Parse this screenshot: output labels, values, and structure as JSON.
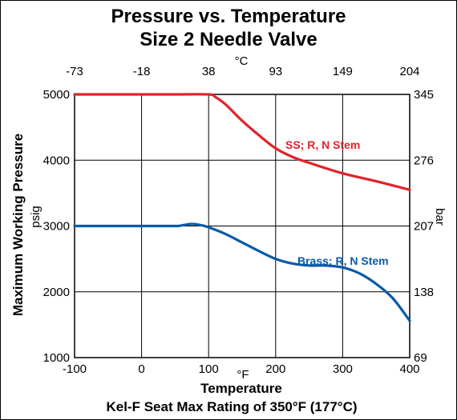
{
  "title_line1": "Pressure vs. Temperature",
  "title_line2": "Size 2 Needle Valve",
  "footer": "Kel-F Seat Max Rating of 350°F (177°C)",
  "colors": {
    "ss": "#e0232a",
    "brass": "#0b5aa8"
  },
  "chart_data": {
    "type": "line",
    "title": "Pressure vs. Temperature Size 2 Needle Valve",
    "xlabel": "Temperature",
    "x_unit_bottom": "°F",
    "x_unit_top": "°C",
    "ylabel": "Maximum Working Pressure",
    "y_unit_left": "psig",
    "y_unit_right": "bar",
    "xlim": [
      -100,
      400
    ],
    "ylim": [
      1000,
      5000
    ],
    "grid": true,
    "x_ticks": [
      "-100",
      "0",
      "100",
      "200",
      "300",
      "400"
    ],
    "x_tick_values": [
      -100,
      0,
      100,
      200,
      300,
      400
    ],
    "top_ticks": [
      "-73",
      "-18",
      "38",
      "93",
      "149",
      "204"
    ],
    "y_ticks": [
      "1000",
      "2000",
      "3000",
      "4000",
      "5000"
    ],
    "y_tick_values": [
      1000,
      2000,
      3000,
      4000,
      5000
    ],
    "right_ticks": [
      "69",
      "138",
      "207",
      "276",
      "345"
    ],
    "series": [
      {
        "name": "SS; R, N Stem",
        "color_key": "ss",
        "x": [
          -100,
          0,
          50,
          100,
          110,
          125,
          150,
          175,
          200,
          225,
          250,
          300,
          350,
          400
        ],
        "y": [
          5000,
          5000,
          5000,
          5000,
          4960,
          4850,
          4600,
          4380,
          4180,
          4050,
          3960,
          3800,
          3680,
          3550
        ]
      },
      {
        "name": "Brass; R, N Stem",
        "color_key": "brass",
        "x": [
          -100,
          0,
          50,
          60,
          75,
          90,
          100,
          125,
          150,
          175,
          200,
          225,
          250,
          275,
          300,
          325,
          350,
          375,
          400
        ],
        "y": [
          3000,
          3000,
          3000,
          3010,
          3030,
          3010,
          2980,
          2880,
          2750,
          2620,
          2500,
          2430,
          2400,
          2400,
          2370,
          2280,
          2120,
          1900,
          1560
        ]
      }
    ]
  }
}
